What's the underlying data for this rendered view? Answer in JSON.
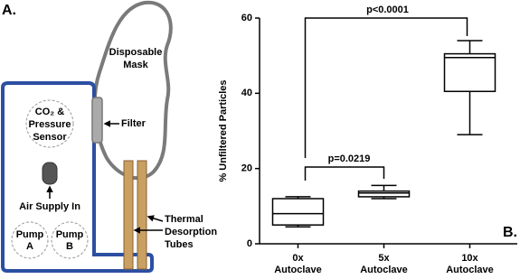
{
  "panel_a": {
    "label": "A.",
    "mask": [
      "Disposable",
      "Mask"
    ],
    "sensor": [
      "CO₂ &",
      "Pressure",
      "Sensor"
    ],
    "filter": "Filter",
    "air_supply": "Air Supply In",
    "pump_a": [
      "Pump",
      "A"
    ],
    "pump_b": [
      "Pump",
      "B"
    ],
    "tubes": [
      "Thermal",
      "Desorption",
      "Tubes"
    ]
  },
  "chart_data": {
    "type": "box",
    "panel_label": "B.",
    "y_label": "% Unfiltered Particles",
    "categories": [
      [
        "0x",
        "Autoclave"
      ],
      [
        "5x",
        "Autoclave"
      ],
      [
        "10x",
        "Autoclave"
      ]
    ],
    "boxes": [
      {
        "min": 4.5,
        "q1": 5,
        "median": 8,
        "q3": 12,
        "max": 12.5
      },
      {
        "min": 12,
        "q1": 12.5,
        "median": 13.5,
        "q3": 14,
        "max": 15.5
      },
      {
        "min": 29,
        "q1": 40.5,
        "median": 49.5,
        "q3": 50.5,
        "max": 54
      }
    ],
    "color": "#000000",
    "ylim": [
      0,
      60
    ],
    "yticks": [
      0,
      20,
      40,
      60
    ],
    "annotations": [
      "p<0.0001",
      "p=0.0219"
    ]
  }
}
